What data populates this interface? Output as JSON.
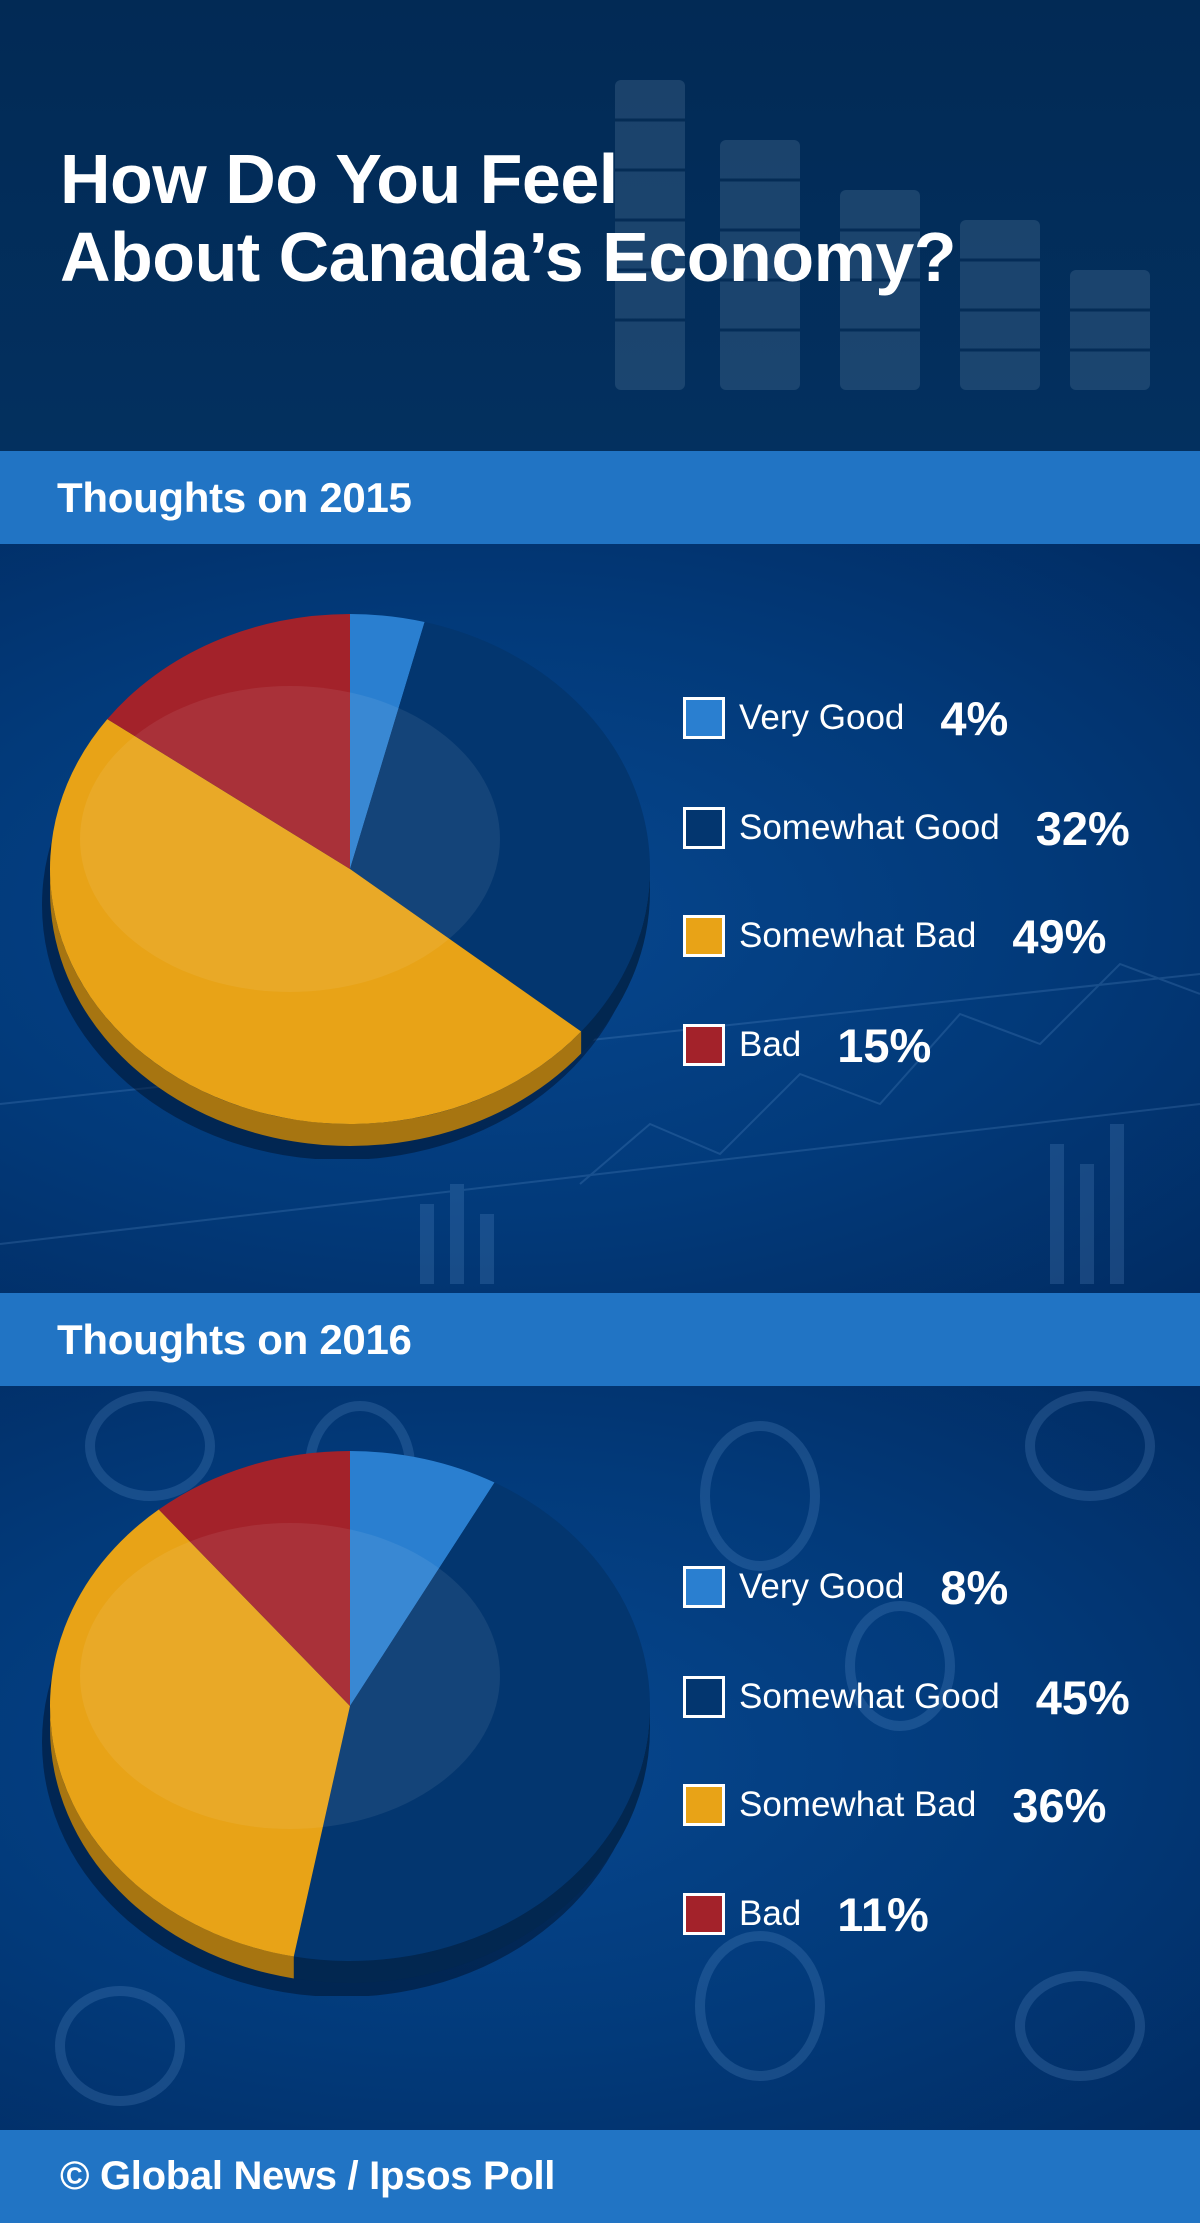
{
  "header": {
    "title_line1": "How Do You Feel",
    "title_line2": "About Canada’s Economy?"
  },
  "colors": {
    "very_good": "#2a7fd0",
    "somewhat_good": "#03366f",
    "somewhat_bad": "#e8a317",
    "bad": "#a3222a",
    "band": "#2174c4"
  },
  "chart_data": [
    {
      "type": "pie",
      "title": "Thoughts on 2015",
      "categories": [
        "Very Good",
        "Somewhat Good",
        "Somewhat Bad",
        "Bad"
      ],
      "values": [
        4,
        32,
        49,
        15
      ],
      "labels": [
        "4%",
        "32%",
        "49%",
        "15%"
      ],
      "legend": "right"
    },
    {
      "type": "pie",
      "title": "Thoughts on 2016",
      "categories": [
        "Very Good",
        "Somewhat Good",
        "Somewhat Bad",
        "Bad"
      ],
      "values": [
        8,
        45,
        36,
        11
      ],
      "labels": [
        "8%",
        "45%",
        "36%",
        "11%"
      ],
      "legend": "right"
    }
  ],
  "footer": {
    "credit": "© Global News / Ipsos Poll"
  }
}
